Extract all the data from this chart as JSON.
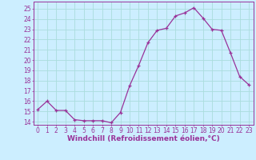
{
  "x": [
    0,
    1,
    2,
    3,
    4,
    5,
    6,
    7,
    8,
    9,
    10,
    11,
    12,
    13,
    14,
    15,
    16,
    17,
    18,
    19,
    20,
    21,
    22,
    23
  ],
  "y": [
    15.2,
    16.0,
    15.1,
    15.1,
    14.2,
    14.1,
    14.1,
    14.1,
    13.9,
    14.9,
    17.5,
    19.5,
    21.7,
    22.9,
    23.1,
    24.3,
    24.6,
    25.1,
    24.1,
    23.0,
    22.9,
    20.7,
    18.4,
    17.6
  ],
  "line_color": "#993399",
  "marker": "+",
  "marker_size": 3.5,
  "linewidth": 0.9,
  "xlabel": "Windchill (Refroidissement éolien,°C)",
  "xlim": [
    -0.5,
    23.5
  ],
  "ylim": [
    13.7,
    25.7
  ],
  "yticks": [
    14,
    15,
    16,
    17,
    18,
    19,
    20,
    21,
    22,
    23,
    24,
    25
  ],
  "xticks": [
    0,
    1,
    2,
    3,
    4,
    5,
    6,
    7,
    8,
    9,
    10,
    11,
    12,
    13,
    14,
    15,
    16,
    17,
    18,
    19,
    20,
    21,
    22,
    23
  ],
  "bg_color": "#cceeff",
  "grid_color": "#aadddd",
  "tick_color": "#993399",
  "label_color": "#993399",
  "font_size_ticks": 5.5,
  "font_size_xlabel": 6.5
}
